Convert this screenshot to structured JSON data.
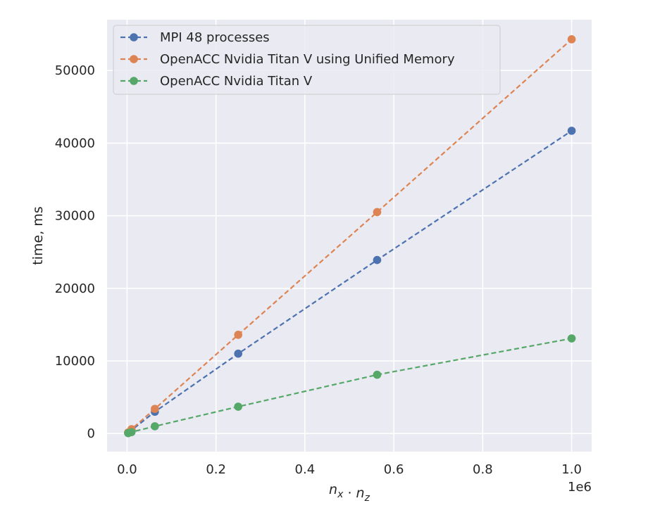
{
  "chart_data": {
    "type": "line",
    "title": "",
    "xlabel": "n_x · n_z",
    "ylabel": "time, ms",
    "x_offset_label": "1e6",
    "xlim": [
      -0.045,
      1.045
    ],
    "ylim": [
      -2500,
      57000
    ],
    "x_ticks": [
      0.0,
      0.2,
      0.4,
      0.6,
      0.8,
      1.0
    ],
    "x_tick_labels": [
      "0.0",
      "0.2",
      "0.4",
      "0.6",
      "0.8",
      "1.0"
    ],
    "y_ticks": [
      0,
      10000,
      20000,
      30000,
      40000,
      50000
    ],
    "y_tick_labels": [
      "0",
      "10000",
      "20000",
      "30000",
      "40000",
      "50000"
    ],
    "grid": true,
    "legend_position": "top-left",
    "x": [
      0.0025,
      0.01,
      0.0625,
      0.25,
      0.5625,
      1.0
    ],
    "series": [
      {
        "name": "MPI 48 processes",
        "color": "#4c72b0",
        "values": [
          100,
          450,
          3000,
          11000,
          23900,
          41700
        ]
      },
      {
        "name": "OpenACC Nvidia Titan V using Unified Memory",
        "color": "#dd8452",
        "values": [
          150,
          600,
          3400,
          13600,
          30500,
          54300
        ]
      },
      {
        "name": "OpenACC Nvidia Titan V",
        "color": "#55a868",
        "values": [
          50,
          200,
          1000,
          3700,
          8100,
          13100
        ]
      }
    ]
  }
}
